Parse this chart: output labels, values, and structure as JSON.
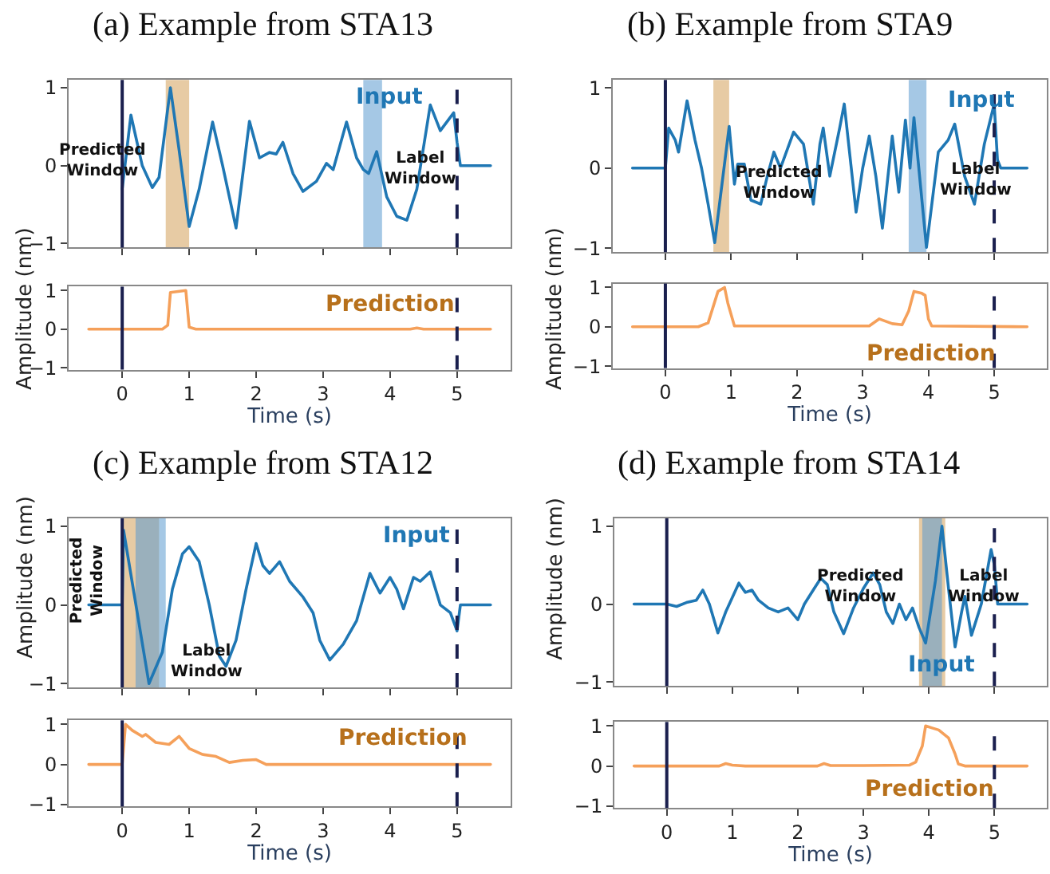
{
  "chart_data": [
    {
      "type": "line",
      "title": "(a) Example from STA13",
      "ylabel": "Amplitude (nm)",
      "tick_labels": "y",
      "grid": false,
      "xlim": [
        -0.8,
        5.8
      ],
      "ylim": [
        -1.05,
        1.1
      ],
      "xticks": [
        0,
        1,
        2,
        3,
        4,
        5
      ],
      "yticks": [
        -1,
        0,
        1
      ],
      "color": "#1f77b4",
      "x": [
        0,
        0.13,
        0.3,
        0.45,
        0.55,
        0.72,
        0.85,
        1.0,
        1.15,
        1.35,
        1.5,
        1.7,
        1.9,
        2.05,
        2.2,
        2.3,
        2.4,
        2.55,
        2.7,
        2.9,
        3.05,
        3.15,
        3.35,
        3.5,
        3.6,
        3.68,
        3.8,
        3.95,
        4.1,
        4.25,
        4.4,
        4.6,
        4.75,
        4.95,
        5.0,
        5.05,
        5.5
      ],
      "values": [
        -0.3,
        0.65,
        0.0,
        -0.28,
        -0.15,
        1.0,
        0.2,
        -0.78,
        -0.3,
        0.56,
        0.0,
        -0.8,
        0.57,
        0.1,
        0.17,
        0.15,
        0.3,
        -0.1,
        -0.33,
        -0.2,
        0.03,
        -0.05,
        0.56,
        0.1,
        -0.05,
        -0.1,
        0.18,
        -0.4,
        -0.65,
        -0.7,
        -0.3,
        0.78,
        0.45,
        0.68,
        0.3,
        0,
        0
      ],
      "bands": [
        {
          "axis": "x",
          "from": 0.65,
          "to": 1.0,
          "color": "#d4a05a"
        },
        {
          "axis": "x",
          "from": 3.6,
          "to": 3.88,
          "color": "#5b9bd0"
        }
      ],
      "ref_lines": [
        {
          "axis": "x",
          "value": 0,
          "color": "#1a1f4e",
          "line_style": "solid"
        },
        {
          "axis": "x",
          "value": 5,
          "color": "#1a1f4e",
          "line_style": "dashed"
        }
      ],
      "annotations": [
        "Predicted Window",
        "Label Window",
        "Input"
      ]
    },
    {
      "type": "line",
      "xlabel": "Time (s)",
      "grid": false,
      "xlim": [
        -0.8,
        5.8
      ],
      "ylim": [
        -1.05,
        1.1
      ],
      "xticks": [
        0,
        1,
        2,
        3,
        4,
        5
      ],
      "yticks": [
        -1,
        0,
        1
      ],
      "color": "#f5a05a",
      "x": [
        -0.5,
        0.6,
        0.68,
        0.72,
        0.95,
        1.0,
        1.1,
        4.3,
        4.4,
        4.5,
        5.5
      ],
      "values": [
        0,
        0,
        0.1,
        0.95,
        1.0,
        0.05,
        0,
        0,
        0.03,
        0,
        0
      ],
      "ref_lines": [
        {
          "axis": "x",
          "value": 0,
          "color": "#1a1f4e",
          "line_style": "solid"
        },
        {
          "axis": "x",
          "value": 5,
          "color": "#1a1f4e",
          "line_style": "dashed"
        }
      ],
      "annotations": [
        "Prediction"
      ]
    },
    {
      "type": "line",
      "title": "(b) Example from STA9",
      "ylabel": "Amplitude (nm)",
      "tick_labels": "y",
      "grid": false,
      "xlim": [
        -0.8,
        5.8
      ],
      "ylim": [
        -1.05,
        1.1
      ],
      "xticks": [
        0,
        1,
        2,
        3,
        4,
        5
      ],
      "yticks": [
        -1,
        0,
        1
      ],
      "color": "#1f77b4",
      "x": [
        -0.5,
        0,
        0.05,
        0.15,
        0.2,
        0.33,
        0.45,
        0.55,
        0.65,
        0.75,
        0.97,
        1.05,
        1.1,
        1.2,
        1.3,
        1.45,
        1.55,
        1.65,
        1.75,
        1.95,
        2.1,
        2.2,
        2.25,
        2.35,
        2.4,
        2.5,
        2.65,
        2.72,
        2.9,
        3.0,
        3.1,
        3.2,
        3.3,
        3.45,
        3.55,
        3.65,
        3.72,
        3.78,
        3.97,
        4.15,
        4.3,
        4.4,
        4.55,
        4.7,
        4.85,
        5.0,
        5.05,
        5.1,
        5.5
      ],
      "values": [
        0,
        0,
        0.5,
        0.35,
        0.2,
        0.84,
        0.35,
        0.0,
        -0.45,
        -0.93,
        0.52,
        -0.2,
        0.05,
        0.05,
        -0.4,
        -0.45,
        -0.1,
        0.2,
        0.0,
        0.45,
        0.3,
        -0.2,
        -0.45,
        0.3,
        0.5,
        -0.1,
        0.5,
        0.8,
        -0.55,
        0.0,
        0.4,
        -0.1,
        -0.75,
        0.4,
        -0.3,
        0.6,
        0.0,
        0.63,
        -0.99,
        0.2,
        0.35,
        0.55,
        -0.1,
        -0.45,
        0.3,
        0.8,
        0.1,
        0,
        0
      ],
      "bands": [
        {
          "axis": "x",
          "from": 0.73,
          "to": 0.97,
          "color": "#d4a05a"
        },
        {
          "axis": "x",
          "from": 3.7,
          "to": 3.97,
          "color": "#5b9bd0"
        }
      ],
      "ref_lines": [
        {
          "axis": "x",
          "value": 0,
          "color": "#1a1f4e",
          "line_style": "solid"
        },
        {
          "axis": "x",
          "value": 5,
          "color": "#1a1f4e",
          "line_style": "dashed"
        }
      ],
      "annotations": [
        "Predicted Window",
        "Label Window",
        "Input"
      ]
    },
    {
      "type": "line",
      "xlabel": "Time (s)",
      "grid": false,
      "xlim": [
        -0.8,
        5.8
      ],
      "ylim": [
        -1.05,
        1.1
      ],
      "xticks": [
        0,
        1,
        2,
        3,
        4,
        5
      ],
      "yticks": [
        -1,
        0,
        1
      ],
      "color": "#f5a05a",
      "x": [
        -0.5,
        0.5,
        0.65,
        0.8,
        0.9,
        0.95,
        1.05,
        3.1,
        3.25,
        3.45,
        3.6,
        3.7,
        3.78,
        3.9,
        3.95,
        4.0,
        4.05,
        5.5
      ],
      "values": [
        0,
        0,
        0.1,
        0.9,
        1.0,
        0.6,
        0.02,
        0.02,
        0.2,
        0.08,
        0.05,
        0.4,
        0.9,
        0.85,
        0.8,
        0.2,
        0.02,
        0
      ],
      "ref_lines": [
        {
          "axis": "x",
          "value": 0,
          "color": "#1a1f4e",
          "line_style": "solid"
        },
        {
          "axis": "x",
          "value": 5,
          "color": "#1a1f4e",
          "line_style": "dashed"
        }
      ],
      "annotations": [
        "Prediction"
      ]
    },
    {
      "type": "line",
      "title": "(c) Example from STA12",
      "ylabel": "Amplitude (nm)",
      "tick_labels": "y",
      "grid": false,
      "xlim": [
        -0.8,
        5.8
      ],
      "ylim": [
        -1.05,
        1.1
      ],
      "xticks": [
        0,
        1,
        2,
        3,
        4,
        5
      ],
      "yticks": [
        -1,
        0,
        1
      ],
      "color": "#1f77b4",
      "x": [
        -0.5,
        0,
        0.02,
        0.4,
        0.6,
        0.75,
        0.9,
        1.0,
        1.15,
        1.3,
        1.45,
        1.55,
        1.7,
        1.85,
        2.0,
        2.1,
        2.2,
        2.35,
        2.5,
        2.7,
        2.85,
        2.95,
        3.1,
        3.3,
        3.5,
        3.7,
        3.85,
        4.0,
        4.1,
        4.2,
        4.35,
        4.45,
        4.6,
        4.75,
        4.9,
        5.0,
        5.05,
        5.5
      ],
      "values": [
        0,
        0,
        0.95,
        -1.0,
        -0.6,
        0.2,
        0.65,
        0.74,
        0.55,
        0.0,
        -0.65,
        -0.78,
        -0.45,
        0.2,
        0.78,
        0.5,
        0.4,
        0.55,
        0.3,
        0.1,
        -0.1,
        -0.45,
        -0.7,
        -0.5,
        -0.2,
        0.4,
        0.15,
        0.35,
        0.2,
        -0.05,
        0.35,
        0.3,
        0.42,
        0.0,
        -0.1,
        -0.33,
        0,
        0
      ],
      "bands": [
        {
          "axis": "x",
          "from": 0.0,
          "to": 0.55,
          "color": "#d4a05a"
        },
        {
          "axis": "x",
          "from": 0.2,
          "to": 0.65,
          "color": "#5b9bd0"
        }
      ],
      "ref_lines": [
        {
          "axis": "x",
          "value": 0,
          "color": "#1a1f4e",
          "line_style": "solid"
        },
        {
          "axis": "x",
          "value": 5,
          "color": "#1a1f4e",
          "line_style": "dashed"
        }
      ],
      "annotations": [
        "Predicted Window",
        "Label Window",
        "Input"
      ]
    },
    {
      "type": "line",
      "xlabel": "Time (s)",
      "grid": false,
      "xlim": [
        -0.8,
        5.8
      ],
      "ylim": [
        -1.05,
        1.1
      ],
      "xticks": [
        0,
        1,
        2,
        3,
        4,
        5
      ],
      "yticks": [
        -1,
        0,
        1
      ],
      "color": "#f5a05a",
      "x": [
        -0.5,
        0,
        0.05,
        0.15,
        0.3,
        0.35,
        0.5,
        0.7,
        0.85,
        1.0,
        1.2,
        1.4,
        1.6,
        1.8,
        2.0,
        2.15,
        5.5
      ],
      "values": [
        0,
        0,
        1.0,
        0.85,
        0.7,
        0.75,
        0.55,
        0.5,
        0.7,
        0.4,
        0.25,
        0.2,
        0.05,
        0.1,
        0.12,
        0,
        0
      ],
      "ref_lines": [
        {
          "axis": "x",
          "value": 0,
          "color": "#1a1f4e",
          "line_style": "solid"
        },
        {
          "axis": "x",
          "value": 5,
          "color": "#1a1f4e",
          "line_style": "dashed"
        }
      ],
      "annotations": [
        "Prediction"
      ]
    },
    {
      "type": "line",
      "title": "(d) Example from STA14",
      "ylabel": "Amplitude (nm)",
      "tick_labels": "y",
      "grid": false,
      "xlim": [
        -0.8,
        5.8
      ],
      "ylim": [
        -1.05,
        1.1
      ],
      "xticks": [
        0,
        1,
        2,
        3,
        4,
        5
      ],
      "yticks": [
        -1,
        0,
        1
      ],
      "color": "#1f77b4",
      "x": [
        -0.5,
        0,
        0.15,
        0.3,
        0.45,
        0.55,
        0.65,
        0.78,
        0.9,
        1.1,
        1.2,
        1.3,
        1.4,
        1.55,
        1.7,
        1.85,
        2.0,
        2.1,
        2.25,
        2.35,
        2.45,
        2.55,
        2.7,
        2.85,
        3.0,
        3.15,
        3.25,
        3.35,
        3.45,
        3.55,
        3.65,
        3.75,
        3.85,
        3.95,
        4.1,
        4.2,
        4.3,
        4.4,
        4.5,
        4.55,
        4.65,
        4.8,
        4.95,
        5.0,
        5.05,
        5.5
      ],
      "values": [
        0,
        0,
        -0.03,
        0.02,
        0.05,
        0.18,
        0.0,
        -0.37,
        -0.1,
        0.27,
        0.15,
        0.18,
        0.05,
        -0.05,
        -0.1,
        -0.05,
        -0.2,
        0.0,
        0.2,
        0.33,
        0.25,
        -0.1,
        -0.38,
        -0.05,
        0.2,
        0.4,
        0.25,
        -0.1,
        -0.25,
        0.0,
        -0.2,
        -0.05,
        -0.3,
        -0.5,
        0.3,
        1.0,
        0.2,
        -0.55,
        -0.1,
        0.1,
        -0.4,
        0.0,
        0.7,
        0.5,
        0,
        0
      ],
      "bands": [
        {
          "axis": "x",
          "from": 3.85,
          "to": 4.25,
          "color": "#d4a05a"
        },
        {
          "axis": "x",
          "from": 3.9,
          "to": 4.2,
          "color": "#5b9bd0"
        }
      ],
      "ref_lines": [
        {
          "axis": "x",
          "value": 0,
          "color": "#1a1f4e",
          "line_style": "solid"
        },
        {
          "axis": "x",
          "value": 5,
          "color": "#1a1f4e",
          "line_style": "dashed"
        }
      ],
      "annotations": [
        "Predicted Window",
        "Label Window",
        "Input"
      ]
    },
    {
      "type": "line",
      "xlabel": "Time (s)",
      "grid": false,
      "xlim": [
        -0.8,
        5.8
      ],
      "ylim": [
        -1.05,
        1.1
      ],
      "xticks": [
        0,
        1,
        2,
        3,
        4,
        5
      ],
      "yticks": [
        -1,
        0,
        1
      ],
      "color": "#f5a05a",
      "x": [
        -0.5,
        0.8,
        0.9,
        1.0,
        1.2,
        2.3,
        2.4,
        2.5,
        3.0,
        3.7,
        3.8,
        3.9,
        3.95,
        4.05,
        4.15,
        4.3,
        4.4,
        4.45,
        4.55,
        5.5
      ],
      "values": [
        0,
        0,
        0.06,
        0.02,
        0,
        0,
        0.06,
        0.01,
        0.01,
        0.02,
        0.1,
        0.5,
        1.0,
        0.95,
        0.9,
        0.7,
        0.3,
        0.05,
        0,
        0
      ],
      "ref_lines": [
        {
          "axis": "x",
          "value": 0,
          "color": "#1a1f4e",
          "line_style": "solid"
        },
        {
          "axis": "x",
          "value": 5,
          "color": "#1a1f4e",
          "line_style": "dashed"
        }
      ],
      "annotations": [
        "Prediction"
      ]
    }
  ]
}
